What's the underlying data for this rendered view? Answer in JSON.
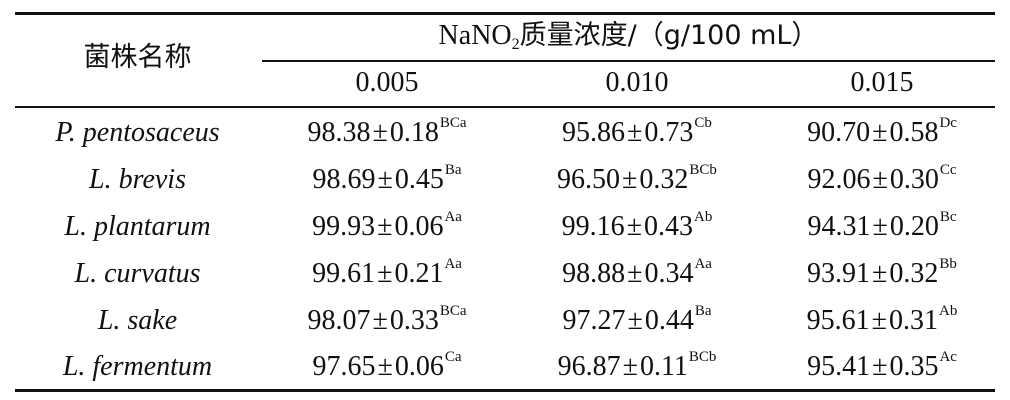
{
  "table": {
    "header": {
      "strain_label": "菌株名称",
      "conc_prefix": "NaNO",
      "conc_subscript": "2",
      "conc_suffix": "质量浓度/（g/100 mL）",
      "columns": [
        "0.005",
        "0.010",
        "0.015"
      ]
    },
    "rows": [
      {
        "strain": "P. pentosaceus",
        "cells": [
          {
            "mean": "98.38",
            "sd": "0.18",
            "sig": "BCa"
          },
          {
            "mean": "95.86",
            "sd": "0.73",
            "sig": "Cb"
          },
          {
            "mean": "90.70",
            "sd": "0.58",
            "sig": "Dc"
          }
        ]
      },
      {
        "strain": "L. brevis",
        "cells": [
          {
            "mean": "98.69",
            "sd": "0.45",
            "sig": "Ba"
          },
          {
            "mean": "96.50",
            "sd": "0.32",
            "sig": "BCb"
          },
          {
            "mean": "92.06",
            "sd": "0.30",
            "sig": "Cc"
          }
        ]
      },
      {
        "strain": "L. plantarum",
        "cells": [
          {
            "mean": "99.93",
            "sd": "0.06",
            "sig": "Aa"
          },
          {
            "mean": "99.16",
            "sd": "0.43",
            "sig": "Ab"
          },
          {
            "mean": "94.31",
            "sd": "0.20",
            "sig": "Bc"
          }
        ]
      },
      {
        "strain": "L. curvatus",
        "cells": [
          {
            "mean": "99.61",
            "sd": "0.21",
            "sig": "Aa"
          },
          {
            "mean": "98.88",
            "sd": "0.34",
            "sig": "Aa"
          },
          {
            "mean": "93.91",
            "sd": "0.32",
            "sig": "Bb"
          }
        ]
      },
      {
        "strain": "L. sake",
        "cells": [
          {
            "mean": "98.07",
            "sd": "0.33",
            "sig": "BCa"
          },
          {
            "mean": "97.27",
            "sd": "0.44",
            "sig": "Ba"
          },
          {
            "mean": "95.61",
            "sd": "0.31",
            "sig": "Ab"
          }
        ]
      },
      {
        "strain": "L. fermentum",
        "cells": [
          {
            "mean": "97.65",
            "sd": "0.06",
            "sig": "Ca"
          },
          {
            "mean": "96.87",
            "sd": "0.11",
            "sig": "BCb"
          },
          {
            "mean": "95.41",
            "sd": "0.35",
            "sig": "Ac"
          }
        ]
      }
    ]
  }
}
